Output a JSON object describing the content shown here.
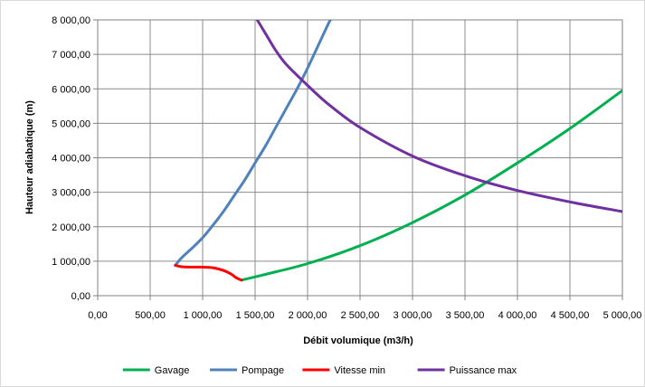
{
  "chart_data": {
    "type": "line",
    "xlabel": "Débit volumique (m3/h)",
    "ylabel": "Hauteur adiabatique (m)",
    "xlim": [
      0,
      5000
    ],
    "ylim": [
      0,
      8000
    ],
    "x_ticks": [
      0,
      500,
      1000,
      1500,
      2000,
      2500,
      3000,
      3500,
      4000,
      4500,
      5000
    ],
    "y_ticks": [
      0,
      1000,
      2000,
      3000,
      4000,
      5000,
      6000,
      7000,
      8000
    ],
    "x_tick_labels": [
      "0,00",
      "500,00",
      "1 000,00",
      "1 500,00",
      "2 000,00",
      "2 500,00",
      "3 000,00",
      "3 500,00",
      "4 000,00",
      "4 500,00",
      "5 000,00"
    ],
    "y_tick_labels": [
      "0,00",
      "1 000,00",
      "2 000,00",
      "3 000,00",
      "4 000,00",
      "5 000,00",
      "6 000,00",
      "7 000,00",
      "8 000,00"
    ],
    "grid": true,
    "legend_position": "bottom",
    "series": [
      {
        "name": "Gavage",
        "color": "#00b050",
        "x": [
          1370,
          1600,
          2000,
          2500,
          3000,
          3500,
          4000,
          4500,
          5000
        ],
        "y": [
          450,
          620,
          930,
          1450,
          2120,
          2920,
          3850,
          4850,
          5950
        ]
      },
      {
        "name": "Pompage",
        "color": "#4f81bd",
        "x": [
          740,
          800,
          900,
          1000,
          1100,
          1200,
          1300,
          1400,
          1500,
          1600,
          1700,
          1800,
          1900,
          2000,
          2100,
          2200,
          2220
        ],
        "y": [
          880,
          1100,
          1380,
          1680,
          2050,
          2450,
          2900,
          3350,
          3850,
          4350,
          4900,
          5450,
          6000,
          6600,
          7250,
          7900,
          8000
        ]
      },
      {
        "name": "Vitesse min",
        "color": "#ff0000",
        "x": [
          740,
          800,
          900,
          1000,
          1100,
          1200,
          1270,
          1320,
          1370
        ],
        "y": [
          880,
          840,
          830,
          830,
          810,
          730,
          630,
          520,
          450
        ]
      },
      {
        "name": "Puissance max",
        "color": "#7030a0",
        "x": [
          1520,
          1600,
          1700,
          1800,
          2000,
          2200,
          2500,
          3000,
          3500,
          4000,
          4500,
          5000
        ],
        "y": [
          8000,
          7600,
          7100,
          6700,
          6100,
          5550,
          4880,
          4050,
          3480,
          3050,
          2720,
          2440
        ]
      }
    ]
  }
}
